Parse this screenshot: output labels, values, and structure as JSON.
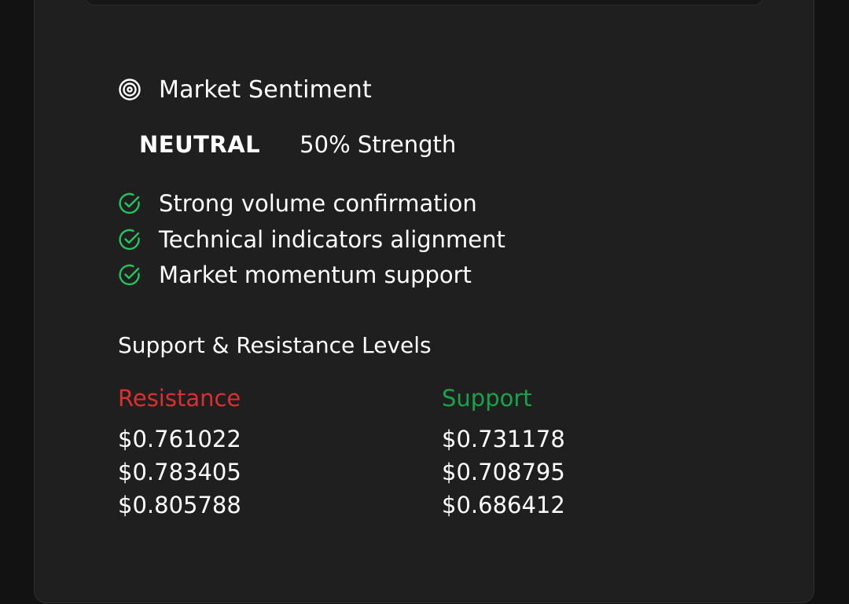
{
  "colors": {
    "background": "#121212",
    "card": "#1f1f1f",
    "text": "#ffffff",
    "check": "#22c55e",
    "resistance": "#dc2f2f",
    "support": "#18a34a"
  },
  "sentiment": {
    "title": "Market Sentiment",
    "icon": "target-icon",
    "label": "NEUTRAL",
    "strength": "50% Strength",
    "factors": [
      {
        "icon": "check-circle-icon",
        "text": "Strong volume confirmation"
      },
      {
        "icon": "check-circle-icon",
        "text": "Technical indicators alignment"
      },
      {
        "icon": "check-circle-icon",
        "text": "Market momentum support"
      }
    ]
  },
  "levels": {
    "title": "Support & Resistance Levels",
    "resistance": {
      "label": "Resistance",
      "values": [
        "$0.761022",
        "$0.783405",
        "$0.805788"
      ]
    },
    "support": {
      "label": "Support",
      "values": [
        "$0.731178",
        "$0.708795",
        "$0.686412"
      ]
    }
  }
}
